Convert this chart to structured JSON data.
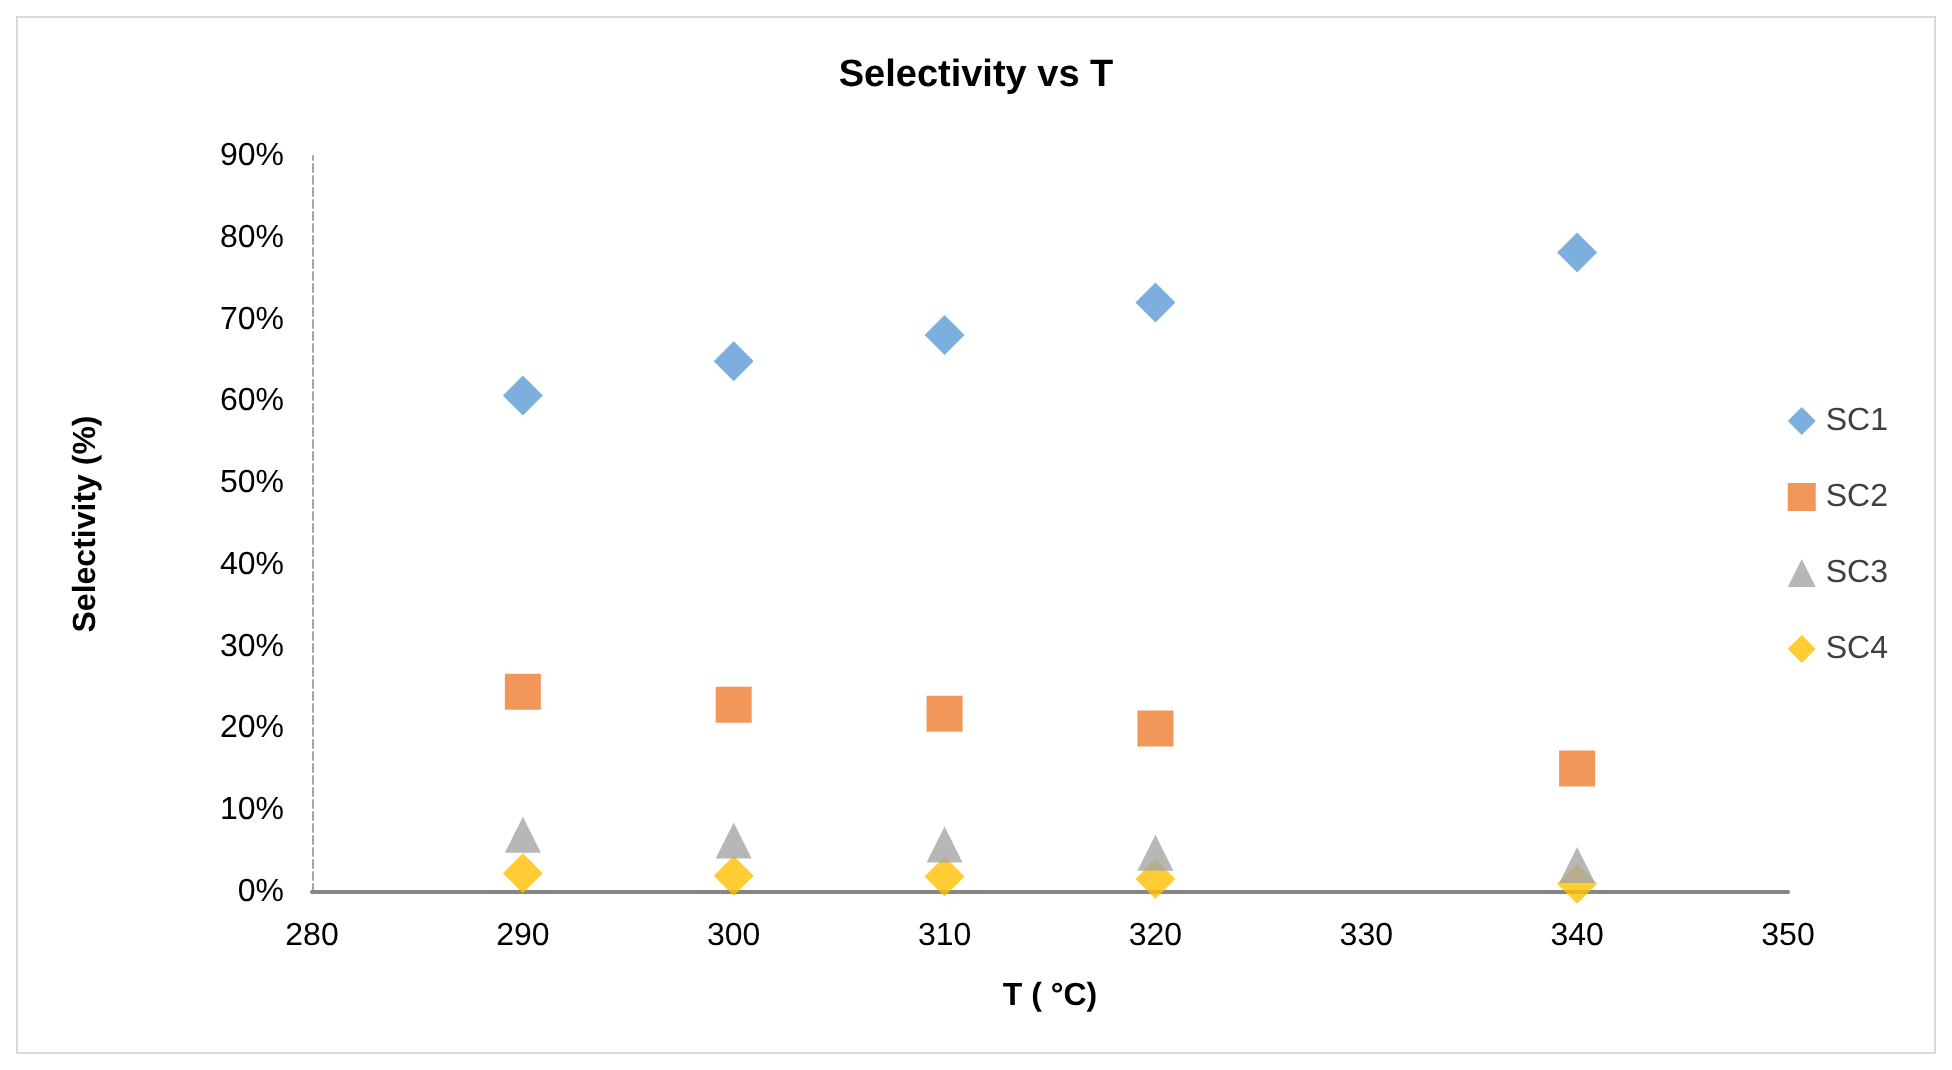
{
  "chart_data": {
    "type": "scatter",
    "title": "Selectivity vs T",
    "xlabel": "T ( °C)",
    "ylabel": "Selectivity (%)",
    "x": [
      290,
      300,
      310,
      320,
      340
    ],
    "series": [
      {
        "name": "SC1",
        "color": "#5b9bd5",
        "marker": "diamond",
        "values": [
          60.7,
          64.9,
          68.1,
          72.1,
          78.2
        ]
      },
      {
        "name": "SC2",
        "color": "#ed7d31",
        "marker": "square",
        "values": [
          24.5,
          22.9,
          21.8,
          20.0,
          15.1
        ]
      },
      {
        "name": "SC3",
        "color": "#a5a5a5",
        "marker": "triangle",
        "values": [
          7.0,
          6.3,
          5.8,
          4.8,
          3.3
        ]
      },
      {
        "name": "SC4",
        "color": "#ffc000",
        "marker": "diamond",
        "values": [
          2.3,
          2.0,
          1.9,
          1.6,
          1.0
        ]
      }
    ],
    "xlim": [
      280,
      350
    ],
    "xticks": [
      280,
      290,
      300,
      310,
      320,
      330,
      340,
      350
    ],
    "ylim": [
      0,
      90
    ],
    "yticks": [
      {
        "value": 0,
        "label": "0%"
      },
      {
        "value": 10,
        "label": "10%"
      },
      {
        "value": 20,
        "label": "20%"
      },
      {
        "value": 30,
        "label": "30%"
      },
      {
        "value": 40,
        "label": "40%"
      },
      {
        "value": 50,
        "label": "50%"
      },
      {
        "value": 60,
        "label": "60%"
      },
      {
        "value": 70,
        "label": "70%"
      },
      {
        "value": 80,
        "label": "80%"
      },
      {
        "value": 90,
        "label": "90%"
      }
    ],
    "grid": false,
    "legend": "right"
  }
}
